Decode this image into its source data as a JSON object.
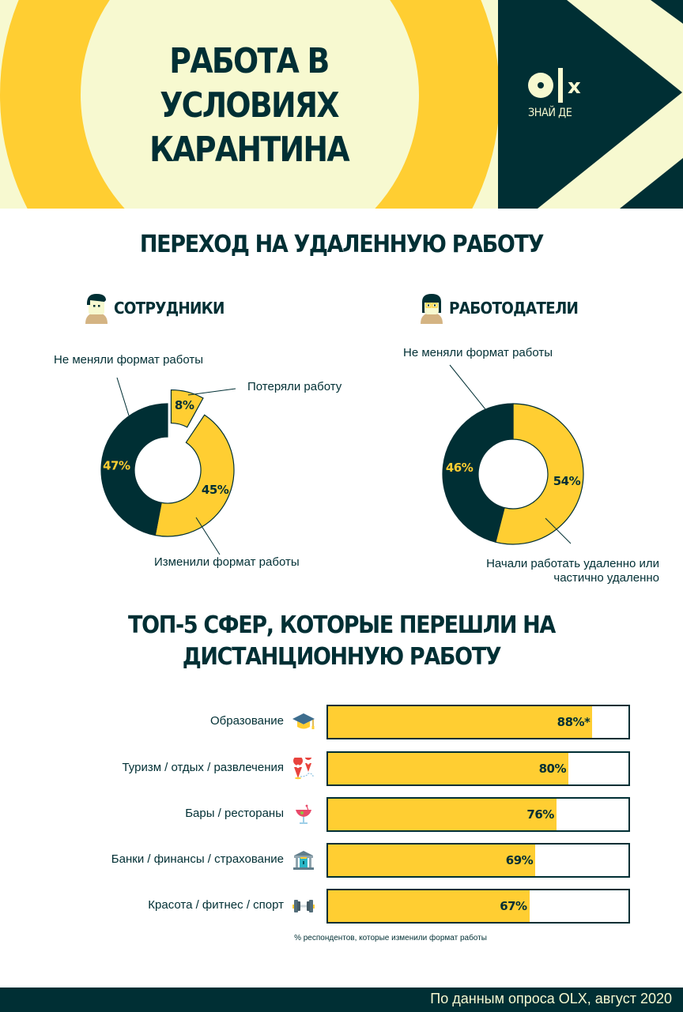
{
  "colors": {
    "dark": "#002f34",
    "yellow": "#ffce32",
    "cream": "#f7f9d0",
    "white": "#ffffff"
  },
  "header": {
    "title_lines": [
      "РАБОТА В",
      "УСЛОВИЯХ",
      "КАРАНТИНА"
    ],
    "logo_text": "olx",
    "logo_tagline": "ЗНАЙ ДЕ"
  },
  "section1": {
    "title": "ПЕРЕХОД НА УДАЛЕННУЮ РАБОТУ",
    "employees": {
      "heading": "СОТРУДНИКИ",
      "icon": "male-avatar-icon"
    },
    "employers": {
      "heading": "РАБОТОДАТЕЛИ",
      "icon": "female-avatar-icon"
    }
  },
  "section2": {
    "title_lines": [
      "ТОП-5 СФЕР, КОТОРЫЕ ПЕРЕШЛИ НА",
      "ДИСТАНЦИОННУЮ РАБОТУ"
    ],
    "footnote": "% респондентов, которые изменили формат работы"
  },
  "footer": {
    "source": "По данным опроса OLX, август 2020"
  },
  "chart_data": [
    {
      "type": "pie",
      "title": "СОТРУДНИКИ",
      "donut": true,
      "categories": [
        "Потеряли работу",
        "Изменили формат работы",
        "Не меняли формат работы"
      ],
      "values": [
        8,
        45,
        47
      ],
      "value_labels": [
        "8%",
        "45%",
        "47%"
      ],
      "colors": [
        "#ffce32",
        "#ffce32",
        "#002f34"
      ],
      "exploded": [
        true,
        false,
        false
      ]
    },
    {
      "type": "pie",
      "title": "РАБОТОДАТЕЛИ",
      "donut": true,
      "categories": [
        "Начали работать удаленно или частично удаленно",
        "Не меняли формат работы"
      ],
      "category_lines": [
        [
          "Начали работать удаленно или",
          "частично удаленно"
        ],
        [
          "Не меняли формат работы"
        ]
      ],
      "values": [
        54,
        46
      ],
      "value_labels": [
        "54%",
        "46%"
      ],
      "colors": [
        "#ffce32",
        "#002f34"
      ]
    },
    {
      "type": "bar",
      "orientation": "horizontal",
      "title": "ТОП-5 СФЕР, КОТОРЫЕ ПЕРЕШЛИ НА ДИСТАНЦИОННУЮ РАБОТУ",
      "categories": [
        "Образование",
        "Туризм / отдых / развлечения",
        "Бары / рестораны",
        "Банки / финансы / страхование",
        "Красота / фитнес / спорт"
      ],
      "icons": [
        "graduation-cap-icon",
        "map-pins-icon",
        "cocktail-icon",
        "bank-icon",
        "dumbbell-icon"
      ],
      "values": [
        88,
        80,
        76,
        69,
        67
      ],
      "value_labels": [
        "88%*",
        "80%",
        "76%",
        "69%",
        "67%"
      ],
      "xlim": [
        0,
        100
      ],
      "xlabel": "% респондентов, которые изменили формат работы"
    }
  ]
}
